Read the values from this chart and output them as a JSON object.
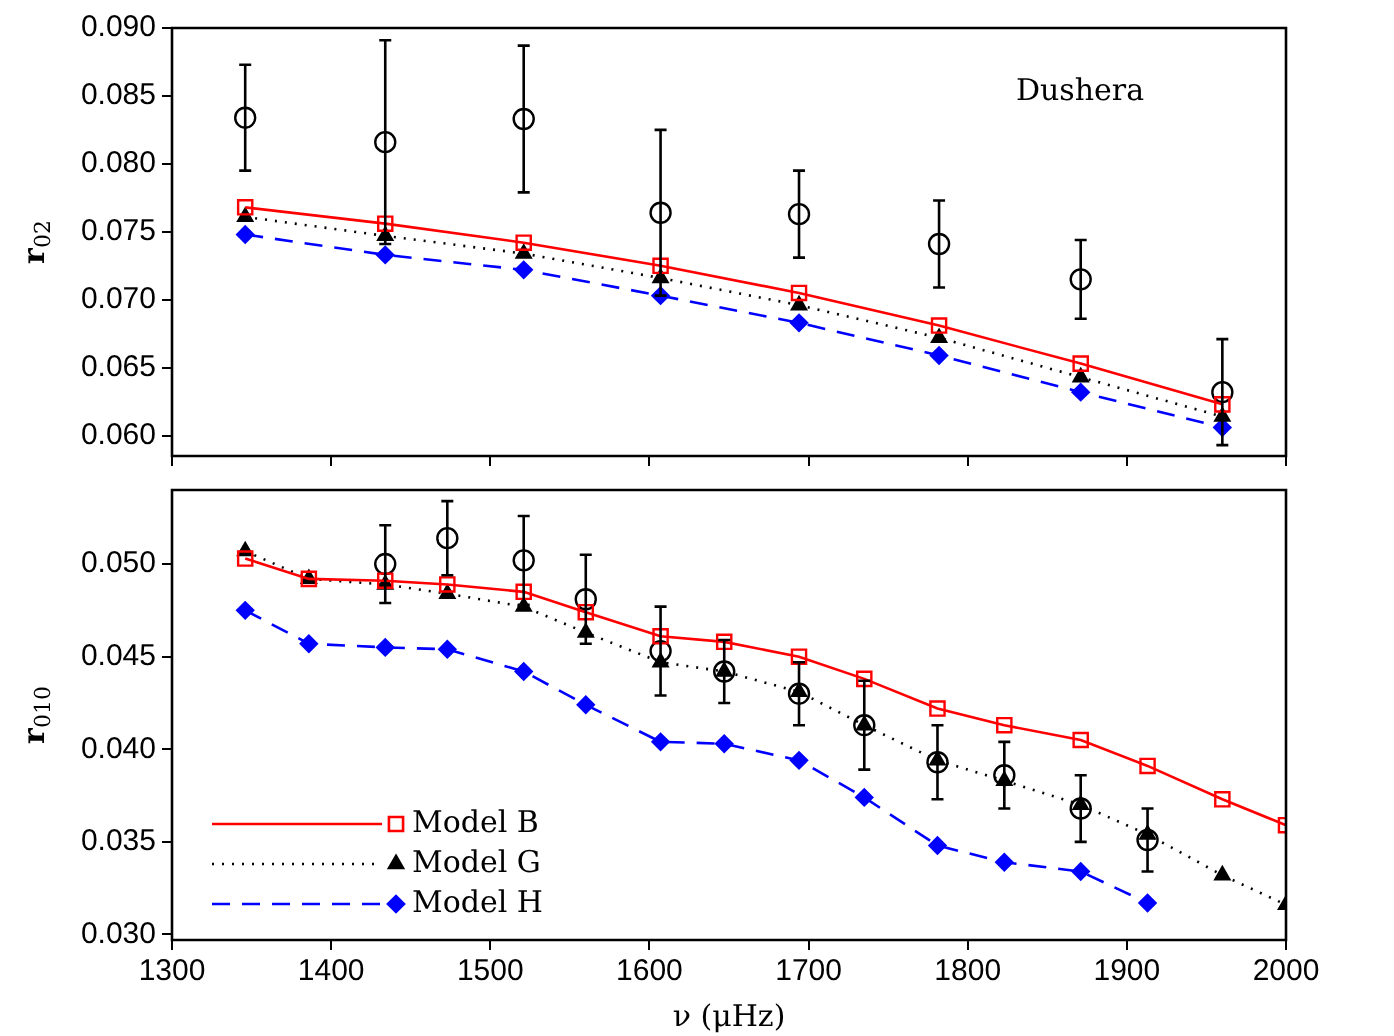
{
  "chart_data": [
    {
      "type": "line",
      "ylabel": "r$_{02}$",
      "annotations": [
        "Dushera"
      ],
      "legend": false,
      "tick_labels": "y",
      "grid": false,
      "xlim": [
        1300,
        2000
      ],
      "xticks": [
        1300,
        1400,
        1500,
        1600,
        1700,
        1800,
        1900,
        2000
      ],
      "ylim": [
        0.0585,
        0.09
      ],
      "yticks": [
        {
          "value": 0.06,
          "label": "0.060"
        },
        {
          "value": 0.065,
          "label": "0.065"
        },
        {
          "value": 0.07,
          "label": "0.070"
        },
        {
          "value": 0.075,
          "label": "0.075"
        },
        {
          "value": 0.08,
          "label": "0.080"
        },
        {
          "value": 0.085,
          "label": "0.085"
        },
        {
          "value": 0.09,
          "label": "0.090"
        }
      ],
      "series": [
        {
          "type": "line",
          "color": "#ff0000",
          "marker": "square",
          "line_style": "solid",
          "x": [
            1346,
            1434,
            1521,
            1607,
            1694,
            1782,
            1871,
            1960
          ],
          "values": [
            0.0768,
            0.0756,
            0.0742,
            0.0725,
            0.0705,
            0.0681,
            0.0653,
            0.0623
          ]
        },
        {
          "type": "line",
          "color": "#000000",
          "marker": "triangle",
          "line_style": "dotted",
          "x": [
            1346,
            1434,
            1521,
            1607,
            1694,
            1782,
            1871,
            1960
          ],
          "values": [
            0.0761,
            0.0747,
            0.0734,
            0.0716,
            0.0696,
            0.0672,
            0.0643,
            0.0614
          ]
        },
        {
          "type": "line",
          "color": "#0000ff",
          "marker": "diamond",
          "line_style": "dashed",
          "x": [
            1346,
            1434,
            1521,
            1607,
            1694,
            1782,
            1871,
            1960
          ],
          "values": [
            0.0748,
            0.0733,
            0.0722,
            0.0703,
            0.0683,
            0.0659,
            0.0632,
            0.0606
          ]
        },
        {
          "type": "scatter",
          "color": "#000000",
          "marker": "circle",
          "x": [
            1346,
            1434,
            1521,
            1607,
            1694,
            1782,
            1871,
            1960
          ],
          "values": [
            0.0834,
            0.0816,
            0.0833,
            0.0764,
            0.0763,
            0.0741,
            0.0715,
            0.0632
          ],
          "errors": [
            0.0039,
            0.0075,
            0.0054,
            0.0061,
            0.0032,
            0.0032,
            0.0029,
            0.0039
          ]
        }
      ]
    },
    {
      "type": "line",
      "xlabel": "ν (μHz)",
      "ylabel": "r$_{010}$",
      "legend": "bottom left",
      "grid": false,
      "xlim": [
        1300,
        2000
      ],
      "xticks": [
        1300,
        1400,
        1500,
        1600,
        1700,
        1800,
        1900,
        2000
      ],
      "ylim": [
        0.0297,
        0.054
      ],
      "yticks": [
        {
          "value": 0.03,
          "label": "0.030"
        },
        {
          "value": 0.035,
          "label": "0.035"
        },
        {
          "value": 0.04,
          "label": "0.040"
        },
        {
          "value": 0.045,
          "label": "0.045"
        },
        {
          "value": 0.05,
          "label": "0.050"
        }
      ],
      "series": [
        {
          "type": "line",
          "name": "Model B",
          "color": "#ff0000",
          "marker": "square",
          "line_style": "solid",
          "x": [
            1346,
            1386,
            1434,
            1473,
            1521,
            1560,
            1607,
            1647,
            1694,
            1735,
            1781,
            1823,
            1871,
            1913,
            1960,
            2000
          ],
          "values": [
            0.0503,
            0.0492,
            0.0491,
            0.0489,
            0.0485,
            0.0474,
            0.0461,
            0.0458,
            0.045,
            0.0438,
            0.0422,
            0.0413,
            0.0405,
            0.0391,
            0.0373,
            0.0359
          ]
        },
        {
          "type": "line",
          "name": "Model G",
          "color": "#000000",
          "marker": "triangle",
          "line_style": "dotted",
          "x": [
            1346,
            1386,
            1434,
            1473,
            1521,
            1560,
            1607,
            1647,
            1694,
            1735,
            1781,
            1823,
            1871,
            1913,
            1960,
            2000
          ],
          "values": [
            0.0507,
            0.0492,
            0.0489,
            0.0484,
            0.0477,
            0.0463,
            0.0447,
            0.0442,
            0.0431,
            0.0413,
            0.0394,
            0.0383,
            0.037,
            0.0354,
            0.0332,
            0.0316
          ]
        },
        {
          "type": "line",
          "name": "Model H",
          "color": "#0000ff",
          "marker": "diamond",
          "line_style": "dashed",
          "x": [
            1346,
            1386,
            1434,
            1473,
            1521,
            1560,
            1607,
            1647,
            1694,
            1735,
            1781,
            1823,
            1871,
            1913
          ],
          "values": [
            0.0475,
            0.0457,
            0.0455,
            0.0454,
            0.0442,
            0.0424,
            0.0404,
            0.0403,
            0.0394,
            0.0374,
            0.0348,
            0.0339,
            0.0334,
            0.0317
          ]
        },
        {
          "type": "scatter",
          "color": "#000000",
          "marker": "circle",
          "x": [
            1434,
            1473,
            1521,
            1560,
            1607,
            1647,
            1694,
            1735,
            1781,
            1823,
            1871,
            1913
          ],
          "values": [
            0.05,
            0.0514,
            0.0502,
            0.0481,
            0.0453,
            0.0442,
            0.043,
            0.0413,
            0.0393,
            0.0386,
            0.0368,
            0.0351
          ],
          "errors": [
            0.0021,
            0.002,
            0.0024,
            0.0024,
            0.0024,
            0.0017,
            0.0017,
            0.0024,
            0.002,
            0.0018,
            0.0018,
            0.0017
          ]
        }
      ]
    }
  ]
}
